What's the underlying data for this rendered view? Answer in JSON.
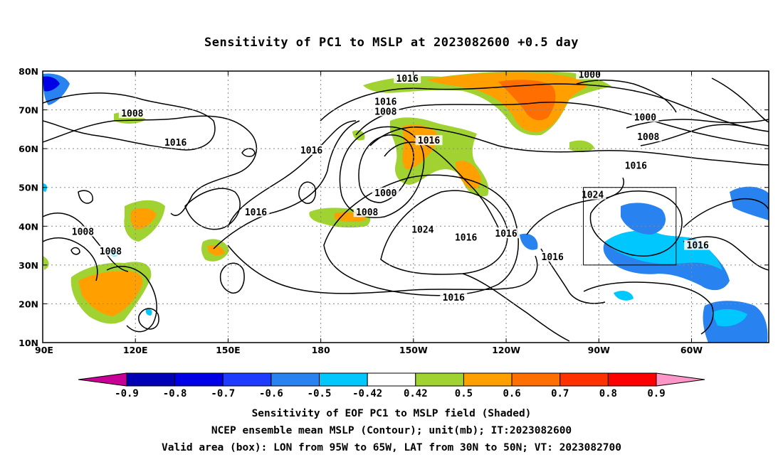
{
  "title": "Sensitivity of PC1 to MSLP at 2023082600 +0.5 day",
  "captions": [
    "Sensitivity of EOF PC1 to MSLP field (Shaded)",
    "NCEP ensemble mean MSLP (Contour); unit(mb); IT:2023082600",
    "Valid area (box): LON from 95W to 65W, LAT from 30N to 50N; VT: 2023082700"
  ],
  "map": {
    "lat_ticks": [
      "80N",
      "70N",
      "60N",
      "50N",
      "40N",
      "30N",
      "20N",
      "10N"
    ],
    "lon_ticks": [
      "90E",
      "120E",
      "150E",
      "180",
      "150W",
      "120W",
      "90W",
      "60W"
    ],
    "lat_values": [
      80,
      70,
      60,
      50,
      40,
      30,
      20,
      10
    ],
    "lon_values": [
      90,
      120,
      150,
      180,
      210,
      240,
      270,
      300
    ],
    "lon_range": [
      90,
      325
    ],
    "lat_range": [
      10,
      80
    ],
    "valid_box": {
      "lon": [
        265,
        295
      ],
      "lat": [
        30,
        50
      ]
    }
  },
  "contour_labels": [
    {
      "text": "1016",
      "lon": 208,
      "lat": 78
    },
    {
      "text": "1000",
      "lon": 267,
      "lat": 79
    },
    {
      "text": "1016",
      "lon": 201,
      "lat": 72
    },
    {
      "text": "1008",
      "lon": 201,
      "lat": 69.5
    },
    {
      "text": "1008",
      "lon": 119,
      "lat": 69
    },
    {
      "text": "1000",
      "lon": 285,
      "lat": 68
    },
    {
      "text": "1008",
      "lon": 286,
      "lat": 63
    },
    {
      "text": "1016",
      "lon": 133,
      "lat": 61.5
    },
    {
      "text": "1016",
      "lon": 215,
      "lat": 62
    },
    {
      "text": "1016",
      "lon": 177,
      "lat": 59.5
    },
    {
      "text": "1016",
      "lon": 282,
      "lat": 55.5
    },
    {
      "text": "1000",
      "lon": 201,
      "lat": 48.5
    },
    {
      "text": "1024",
      "lon": 268,
      "lat": 48
    },
    {
      "text": "1016",
      "lon": 159,
      "lat": 43.5
    },
    {
      "text": "1008",
      "lon": 195,
      "lat": 43.5
    },
    {
      "text": "1024",
      "lon": 213,
      "lat": 39
    },
    {
      "text": "1008",
      "lon": 103,
      "lat": 38.5
    },
    {
      "text": "1016",
      "lon": 227,
      "lat": 37
    },
    {
      "text": "1016",
      "lon": 240,
      "lat": 38
    },
    {
      "text": "1016",
      "lon": 302,
      "lat": 35
    },
    {
      "text": "1008",
      "lon": 112,
      "lat": 33.5
    },
    {
      "text": "1016",
      "lon": 255,
      "lat": 32
    },
    {
      "text": "1016",
      "lon": 223,
      "lat": 21.5
    }
  ],
  "colorbar": {
    "labels": [
      "-0.9",
      "-0.8",
      "-0.7",
      "-0.6",
      "-0.5",
      "-0.42",
      "0.42",
      "0.5",
      "0.6",
      "0.7",
      "0.8",
      "0.9"
    ],
    "colors": [
      "#c80096",
      "#0000b4",
      "#0000e6",
      "#1e3cff",
      "#2882f0",
      "#00c8ff",
      "#ffffff",
      "#a0d232",
      "#ffa000",
      "#ff6e00",
      "#ff3200",
      "#ff0000",
      "#ff96c8"
    ]
  }
}
